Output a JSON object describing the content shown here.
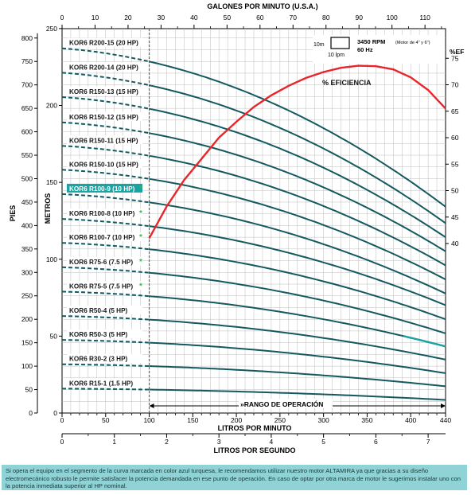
{
  "chart_data": {
    "type": "line",
    "title_top_axis": "GALONES POR MINUTO (U.S.A.)",
    "xlabel_lpm": "LITROS POR MINUTO",
    "xlabel_lps": "LITROS POR SEGUNDO",
    "ylabel_feet": "PIES",
    "ylabel_meters": "METROS",
    "ylabel_eff": "%EF",
    "gpm_ticks": [
      "0",
      "10",
      "20",
      "30",
      "40",
      "50",
      "60",
      "70",
      "80",
      "90",
      "100",
      "110"
    ],
    "feet_ticks": [
      "0",
      "50",
      "100",
      "150",
      "200",
      "250",
      "300",
      "350",
      "400",
      "450",
      "500",
      "550",
      "600",
      "650",
      "700",
      "750",
      "800"
    ],
    "meter_ticks": [
      "0",
      "50",
      "100",
      "150",
      "200",
      "250"
    ],
    "eff_ticks": [
      "40",
      "45",
      "50",
      "55",
      "60",
      "65",
      "70",
      "75"
    ],
    "lpm_ticks": [
      "0",
      "50",
      "100",
      "150",
      "200",
      "250",
      "300",
      "350",
      "400",
      "440"
    ],
    "lps_ticks": [
      "0",
      "1",
      "2",
      "3",
      "4",
      "5",
      "6",
      "7"
    ],
    "xlim_lpm": [
      0,
      440
    ],
    "ylim_feet": [
      0,
      820
    ],
    "operating_range_lpm": [
      100,
      440
    ],
    "operating_range_label": "»RANGO DE OPERACIÓN",
    "efficiency_label": "% EFICIENCIA",
    "efficiency_curve": {
      "x_lpm": [
        100,
        120,
        140,
        160,
        180,
        200,
        220,
        240,
        260,
        280,
        300,
        320,
        340,
        360,
        380,
        400,
        420,
        440
      ],
      "eff": [
        41,
        47,
        52,
        56,
        60,
        63,
        65.8,
        68,
        69.8,
        71.3,
        72.4,
        73.2,
        73.6,
        73.5,
        72.9,
        71.4,
        69,
        65.5
      ]
    },
    "speed_label": "3450 RPM",
    "motor_note": "(Motor de 4\" y 6\")",
    "freq_label": "60 Hz",
    "scale_box": {
      "height_label": "10m",
      "width_label": "10 lpm"
    },
    "series": [
      {
        "name": "KOR6 R200-15 (20 HP)",
        "shutoff_ft": 778,
        "end_ft": 440,
        "star": false,
        "highlight": false
      },
      {
        "name": "KOR6 R200-14 (20 HP)",
        "shutoff_ft": 726,
        "end_ft": 405,
        "star": false,
        "highlight": false
      },
      {
        "name": "KOR6 R150-13 (15 HP)",
        "shutoff_ft": 674,
        "end_ft": 375,
        "star": false,
        "highlight": false
      },
      {
        "name": "KOR6 R150-12 (15 HP)",
        "shutoff_ft": 620,
        "end_ft": 345,
        "star": false,
        "highlight": false
      },
      {
        "name": "KOR6 R150-11 (15 HP)",
        "shutoff_ft": 570,
        "end_ft": 315,
        "star": false,
        "highlight": false
      },
      {
        "name": "KOR6 R150-10 (15 HP)",
        "shutoff_ft": 519,
        "end_ft": 285,
        "star": false,
        "highlight": false
      },
      {
        "name": "KOR6 R100-9 (10 HP)",
        "shutoff_ft": 467,
        "end_ft": 255,
        "star": true,
        "highlight": true
      },
      {
        "name": "KOR6 R100-8 (10 HP)",
        "shutoff_ft": 414,
        "end_ft": 230,
        "star": true,
        "highlight": false
      },
      {
        "name": "KOR6 R100-7 (10 HP)",
        "shutoff_ft": 363,
        "end_ft": 200,
        "star": true,
        "highlight": false
      },
      {
        "name": "KOR6 R75-6 (7.5 HP)",
        "shutoff_ft": 311,
        "end_ft": 170,
        "star": true,
        "highlight": false
      },
      {
        "name": "KOR6 R75-5 (7.5 HP)",
        "shutoff_ft": 259,
        "end_ft": 142,
        "star": true,
        "highlight": false
      },
      {
        "name": "KOR6 R50-4 (5 HP)",
        "shutoff_ft": 207,
        "end_ft": 114,
        "star": false,
        "highlight": false
      },
      {
        "name": "KOR6 R50-3 (5 HP)",
        "shutoff_ft": 156,
        "end_ft": 85,
        "star": false,
        "highlight": false
      },
      {
        "name": "KOR6 R30-2 (3 HP)",
        "shutoff_ft": 104,
        "end_ft": 57,
        "star": false,
        "highlight": false
      },
      {
        "name": "KOR6 R15-1 (1.5 HP)",
        "shutoff_ft": 52,
        "end_ft": 28,
        "star": false,
        "highlight": false
      }
    ],
    "colors": {
      "curve": "#14595f",
      "highlight": "#1aa3a3",
      "efficiency": "#e8252a",
      "star": "#3cb54a",
      "grid": "#bcbcbc"
    }
  },
  "footnote": "Si opera el equipo en el segmento de la curva marcada en color azul turquesa, le recomendamos utilizar nuestro motor ALTAMIRA ya que gracias a su diseño electromecánico robusto le permite satisfacer la potencia demandada en ese punto de operación. En caso de optar por otra marca de motor le sugerimos instalar uno con la potencia inmediata superior al HP nominal."
}
